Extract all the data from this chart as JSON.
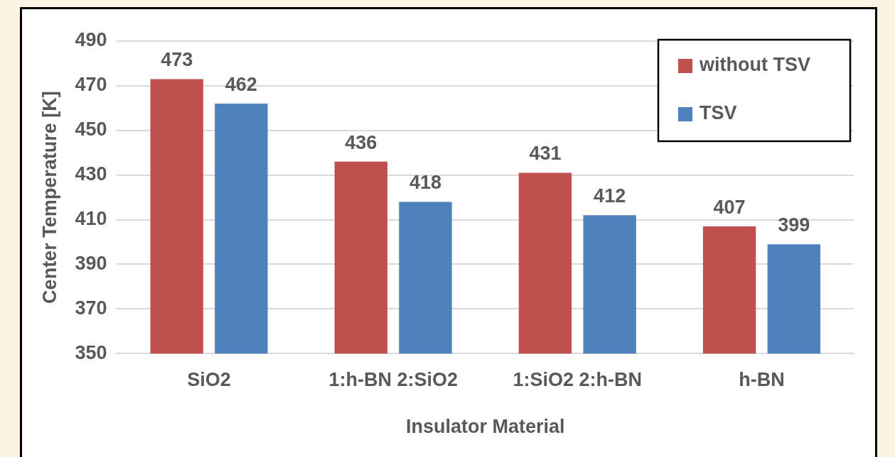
{
  "chart_data": {
    "type": "bar",
    "xlabel": "Insulator Material",
    "ylabel": "Center Temperature [K]",
    "categories": [
      "SiO2",
      "1:h-BN 2:SiO2",
      "1:SiO2 2:h-BN",
      "h-BN"
    ],
    "series": [
      {
        "name": "without TSV",
        "color": "#c0504d",
        "values": [
          473,
          436,
          431,
          407
        ]
      },
      {
        "name": "TSV",
        "color": "#4f81bd",
        "values": [
          462,
          418,
          412,
          399
        ]
      }
    ],
    "ylim": [
      350,
      490
    ],
    "yticks": [
      350,
      370,
      390,
      410,
      430,
      450,
      470,
      490
    ],
    "grid": "y",
    "legend": "top right",
    "data_labels": true
  }
}
